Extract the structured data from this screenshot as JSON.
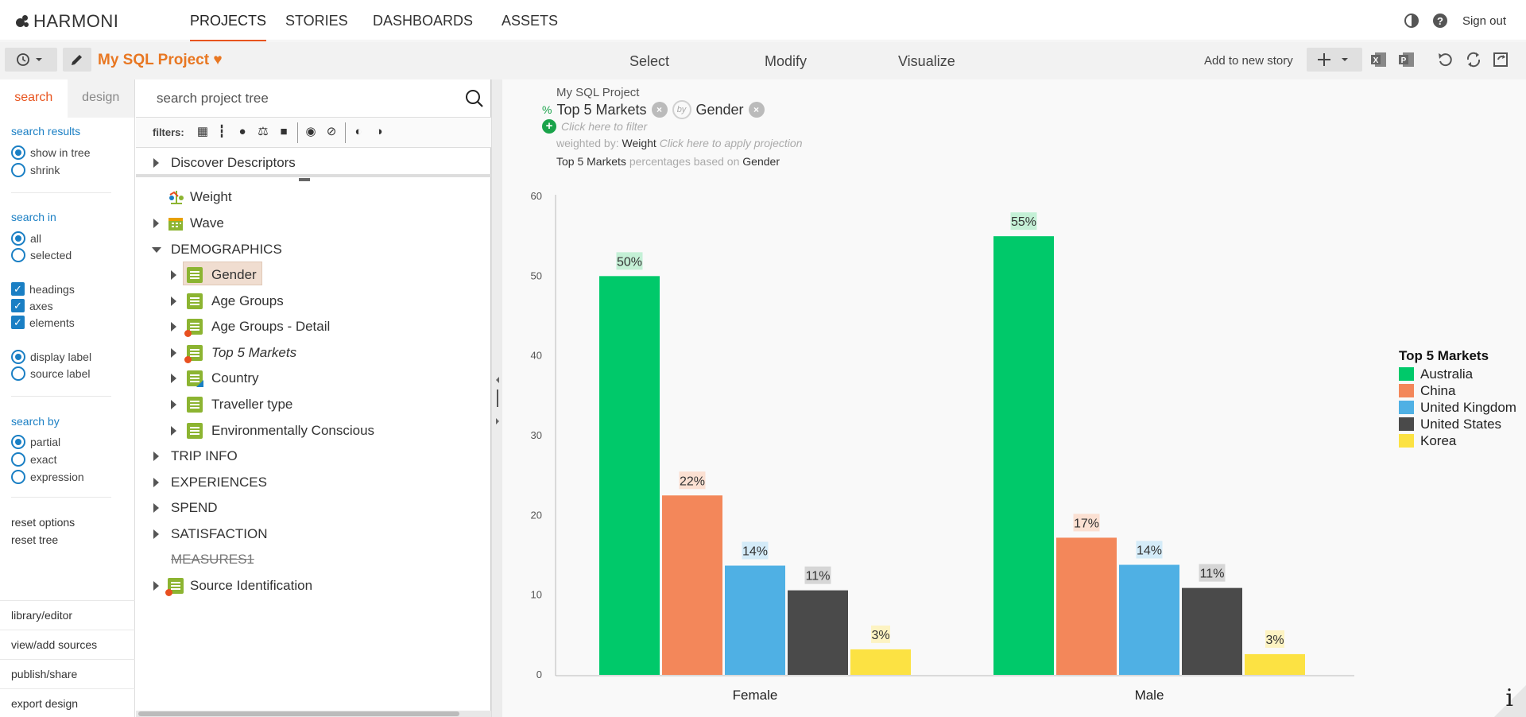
{
  "app": {
    "logo_text": "HARMONI"
  },
  "nav": {
    "tabs": [
      "PROJECTS",
      "STORIES",
      "DASHBOARDS",
      "ASSETS"
    ],
    "active": "PROJECTS",
    "signout": "Sign out",
    "icons": [
      "contrast-icon",
      "help-icon"
    ]
  },
  "toolbar": {
    "project_title": "My SQL Project",
    "modes": [
      "Select",
      "Modify",
      "Visualize"
    ],
    "add_to_story": "Add to new story",
    "icons": [
      "history-icon",
      "pencil-icon",
      "heart-icon",
      "plus-icon",
      "excel-icon",
      "powerpoint-icon",
      "undo-icon",
      "refresh-icon",
      "export-icon"
    ]
  },
  "left": {
    "tabs": {
      "search": "search",
      "design": "design"
    },
    "search_results": {
      "heading": "search results",
      "options": [
        "show in tree",
        "shrink"
      ],
      "selected": "show in tree"
    },
    "search_in": {
      "heading": "search in",
      "options": [
        "all",
        "selected"
      ],
      "selected": "all"
    },
    "checks": [
      "headings",
      "axes",
      "elements"
    ],
    "label_options": {
      "options": [
        "display label",
        "source label"
      ],
      "selected": "display label"
    },
    "search_by": {
      "heading": "search by",
      "options": [
        "partial",
        "exact",
        "expression"
      ],
      "selected": "partial"
    },
    "links": [
      "reset options",
      "reset tree"
    ],
    "footer": [
      "library/editor",
      "view/add sources",
      "publish/share",
      "export design"
    ]
  },
  "tree": {
    "search_placeholder": "search project tree",
    "filters_label": "filters:",
    "items": {
      "discover": "Discover Descriptors",
      "weight": "Weight",
      "wave": "Wave",
      "demographics": "DEMOGRAPHICS",
      "gender": "Gender",
      "age_groups": "Age Groups",
      "age_groups_detail": "Age Groups - Detail",
      "top5": "Top 5 Markets",
      "country": "Country",
      "traveller": "Traveller type",
      "env": "Environmentally Conscious",
      "trip_info": "TRIP INFO",
      "experiences": "EXPERIENCES",
      "spend": "SPEND",
      "satisfaction": "SATISFACTION",
      "measures": "MEASURES1",
      "source_id": "Source Identification"
    }
  },
  "query": {
    "project": "My SQL Project",
    "percent_symbol": "%",
    "rows": "Top 5 Markets",
    "by": "by",
    "cols": "Gender",
    "filter_hint": "Click here to filter",
    "weighted_label": "weighted by:",
    "weight": "Weight",
    "projection_hint": "Click here to apply projection",
    "desc_rows": "Top 5 Markets",
    "desc_mid": "percentages based on",
    "desc_cols": "Gender"
  },
  "chart_data": {
    "type": "bar",
    "categories": [
      "Female",
      "Male"
    ],
    "series": [
      {
        "name": "Australia",
        "color": "#00c96a",
        "values": [
          50,
          55
        ],
        "labels": [
          "50%",
          "55%"
        ],
        "label_bg": "#c4f0d6"
      },
      {
        "name": "China",
        "color": "#f3875a",
        "values": [
          22.5,
          17.2
        ],
        "labels": [
          "22%",
          "17%"
        ],
        "label_bg": "#fbe0d2"
      },
      {
        "name": "United Kingdom",
        "color": "#4fb0e4",
        "values": [
          13.7,
          13.8
        ],
        "labels": [
          "14%",
          "14%"
        ],
        "label_bg": "#d4ebf8"
      },
      {
        "name": "United States",
        "color": "#4a4a4a",
        "values": [
          10.6,
          10.9
        ],
        "labels": [
          "11%",
          "11%"
        ],
        "label_bg": "#d6d6d6"
      },
      {
        "name": "Korea",
        "color": "#fce243",
        "values": [
          3.2,
          2.6
        ],
        "labels": [
          "3%",
          "3%"
        ],
        "label_bg": "#fdf3c2"
      }
    ],
    "yticks": [
      "0",
      "10",
      "20",
      "30",
      "40",
      "50",
      "60"
    ],
    "ylim": [
      0,
      60
    ],
    "grid": false,
    "legend_title": "Top 5 Markets",
    "legend_position": "right"
  }
}
